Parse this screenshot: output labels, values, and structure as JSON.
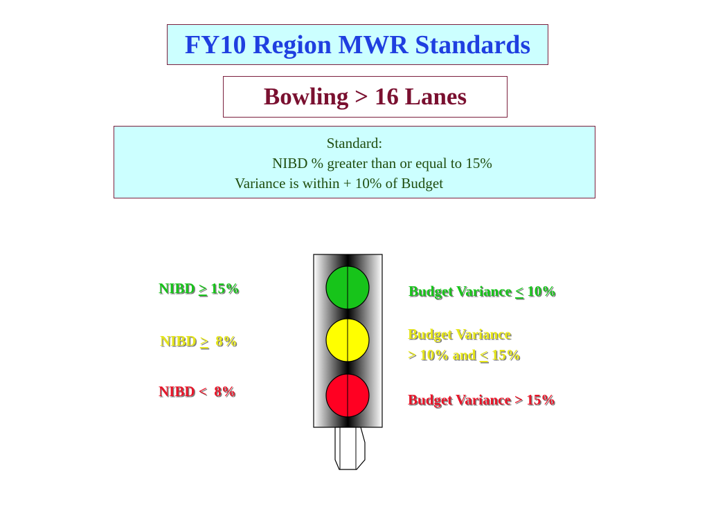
{
  "title": "FY10 Region MWR Standards",
  "subtitle": "Bowling > 16 Lanes",
  "standard": {
    "heading": "Standard:",
    "line1": "NIBD % greater than or equal to 15%",
    "line2": "Variance is within + 10% of Budget"
  },
  "colors": {
    "green": "#17c41a",
    "yellow": "#ffff00",
    "red": "#ff0022",
    "title_text": "#1f3fe0",
    "subtitle_text": "#7a1030",
    "box_border": "#7a1f3d",
    "box_fill": "#ccffff"
  },
  "traffic_light": {
    "lamps": [
      "green",
      "yellow",
      "red"
    ]
  },
  "nibd_labels": {
    "green": {
      "prefix": "NIBD ",
      "sym": ">",
      "rest": " 15%"
    },
    "yellow": {
      "prefix": "NIBD ",
      "sym": ">",
      "rest": "  8%"
    },
    "red": {
      "text": "NIBD <  8%"
    }
  },
  "variance_labels": {
    "green": {
      "prefix": "Budget Variance ",
      "sym": "<",
      "rest": " 10%"
    },
    "yellow": {
      "line1": "Budget Variance",
      "line2_prefix": "> 10% and ",
      "line2_sym": "<",
      "line2_rest": " 15%"
    },
    "red": {
      "text": "Budget Variance > 15%"
    }
  }
}
